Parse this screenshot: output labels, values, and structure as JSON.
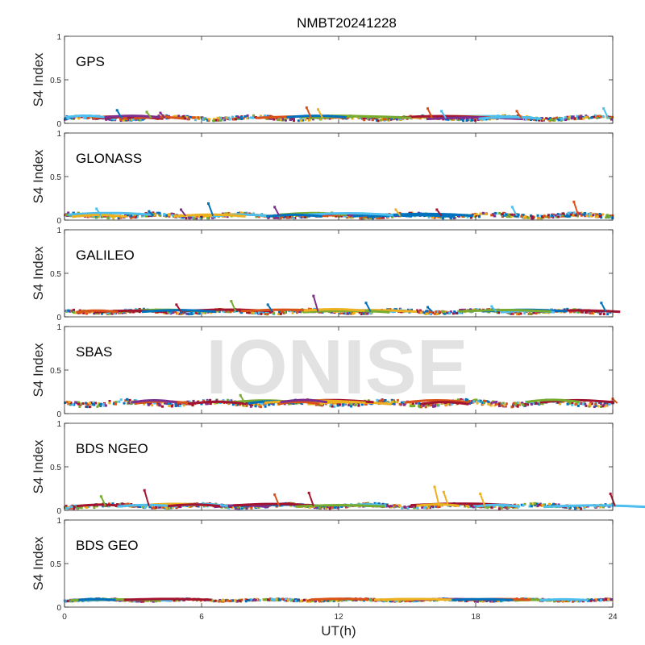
{
  "chart_data": {
    "type": "scatter",
    "title": "NMBT20241228",
    "xlabel": "UT(h)",
    "xlim": [
      0,
      24
    ],
    "xticks": [
      "0",
      "6",
      "12",
      "18",
      "24"
    ],
    "watermark": "IONISE",
    "series_colors": [
      "#0072BD",
      "#D95319",
      "#EDB120",
      "#7E2F8E",
      "#77AC30",
      "#4DBEEE",
      "#A2142F"
    ],
    "panels": [
      {
        "label": "GPS",
        "ylabel": "S4 Index",
        "ylim": [
          0,
          1
        ],
        "yticks": [
          "0",
          "0.5",
          "1"
        ],
        "baseline": 0.06,
        "spread": 0.035,
        "spikes": [
          [
            2.3,
            0.15
          ],
          [
            3.6,
            0.13
          ],
          [
            4.2,
            0.12
          ],
          [
            10.6,
            0.18
          ],
          [
            11.1,
            0.16
          ],
          [
            15.9,
            0.17
          ],
          [
            16.5,
            0.14
          ],
          [
            19.8,
            0.14
          ],
          [
            23.6,
            0.17
          ]
        ]
      },
      {
        "label": "GLONASS",
        "ylabel": "S4 Index",
        "ylim": [
          0,
          1
        ],
        "yticks": [
          "0",
          "0.5",
          "1"
        ],
        "baseline": 0.05,
        "spread": 0.04,
        "spikes": [
          [
            1.4,
            0.13
          ],
          [
            3.7,
            0.1
          ],
          [
            5.1,
            0.12
          ],
          [
            6.3,
            0.19
          ],
          [
            9.2,
            0.15
          ],
          [
            14.5,
            0.12
          ],
          [
            16.3,
            0.12
          ],
          [
            19.6,
            0.15
          ],
          [
            22.3,
            0.21
          ]
        ]
      },
      {
        "label": "GALILEO",
        "ylabel": "S4 Index",
        "ylim": [
          0,
          1
        ],
        "yticks": [
          "0",
          "0.5",
          "1"
        ],
        "baseline": 0.06,
        "spread": 0.035,
        "spikes": [
          [
            4.9,
            0.14
          ],
          [
            7.3,
            0.18
          ],
          [
            8.9,
            0.14
          ],
          [
            10.9,
            0.24
          ],
          [
            13.2,
            0.16
          ],
          [
            15.9,
            0.11
          ],
          [
            18.7,
            0.12
          ],
          [
            23.5,
            0.16
          ]
        ]
      },
      {
        "label": "SBAS",
        "ylabel": "S4 Index",
        "ylim": [
          0,
          1
        ],
        "yticks": [
          "0",
          "0.5",
          "1"
        ],
        "baseline": 0.12,
        "spread": 0.05,
        "spikes": [
          [
            7.7,
            0.21
          ],
          [
            24,
            0.17
          ]
        ]
      },
      {
        "label": "BDS NGEO",
        "ylabel": "S4 Index",
        "ylim": [
          0,
          1
        ],
        "yticks": [
          "0",
          "0.5",
          "1"
        ],
        "baseline": 0.05,
        "spread": 0.035,
        "spikes": [
          [
            1.6,
            0.16
          ],
          [
            3.5,
            0.23
          ],
          [
            9.2,
            0.18
          ],
          [
            10.7,
            0.2
          ],
          [
            16.2,
            0.27
          ],
          [
            16.6,
            0.21
          ],
          [
            18.2,
            0.19
          ],
          [
            23.9,
            0.19
          ]
        ]
      },
      {
        "label": "BDS GEO",
        "ylabel": "S4 Index",
        "ylim": [
          0,
          1
        ],
        "yticks": [
          "0",
          "0.5",
          "1"
        ],
        "baseline": 0.08,
        "spread": 0.02,
        "spikes": []
      }
    ]
  }
}
